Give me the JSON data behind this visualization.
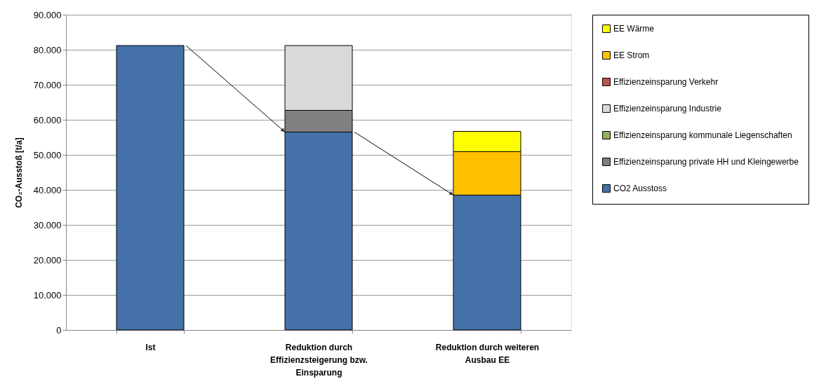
{
  "chart_data": {
    "type": "bar",
    "stacked": true,
    "ylabel": "CO₂-Ausstoß [t/a]",
    "categories": [
      "Ist",
      "Reduktion durch Effizienzsteigerung bzw. Einsparung",
      "Reduktion durch weiteren Ausbau EE"
    ],
    "series": [
      {
        "name": "CO2 Ausstoss",
        "color": "#4472a8",
        "values": [
          81200,
          56500,
          38500
        ]
      },
      {
        "name": "Effizienzeinsparung private HH und Kleingewerbe",
        "color": "#808080",
        "values": [
          null,
          6200,
          null
        ]
      },
      {
        "name": "Effizienzeinsparung kommunale Liegenschaften",
        "color": "#8fb05a",
        "values": [
          null,
          null,
          null
        ]
      },
      {
        "name": "Effizienzeinsparung Industrie",
        "color": "#d9d9d9",
        "values": [
          null,
          18500,
          null
        ]
      },
      {
        "name": "Effizienzeinsparung Verkehr",
        "color": "#c0504d",
        "values": [
          null,
          null,
          null
        ]
      },
      {
        "name": "EE Strom",
        "color": "#ffc000",
        "values": [
          null,
          null,
          12400
        ]
      },
      {
        "name": "EE Wärme",
        "color": "#ffff00",
        "values": [
          null,
          null,
          5800
        ]
      }
    ],
    "ylim": [
      0,
      90000
    ],
    "yticks": [
      {
        "value": 0,
        "label": "0"
      },
      {
        "value": 10000,
        "label": "10.000"
      },
      {
        "value": 20000,
        "label": "20.000"
      },
      {
        "value": 30000,
        "label": "30.000"
      },
      {
        "value": 40000,
        "label": "40.000"
      },
      {
        "value": 50000,
        "label": "50.000"
      },
      {
        "value": 60000,
        "label": "60.000"
      },
      {
        "value": 70000,
        "label": "70.000"
      },
      {
        "value": 80000,
        "label": "80.000"
      },
      {
        "value": 90000,
        "label": "90.000"
      }
    ],
    "grid": "y",
    "legend": "right"
  }
}
